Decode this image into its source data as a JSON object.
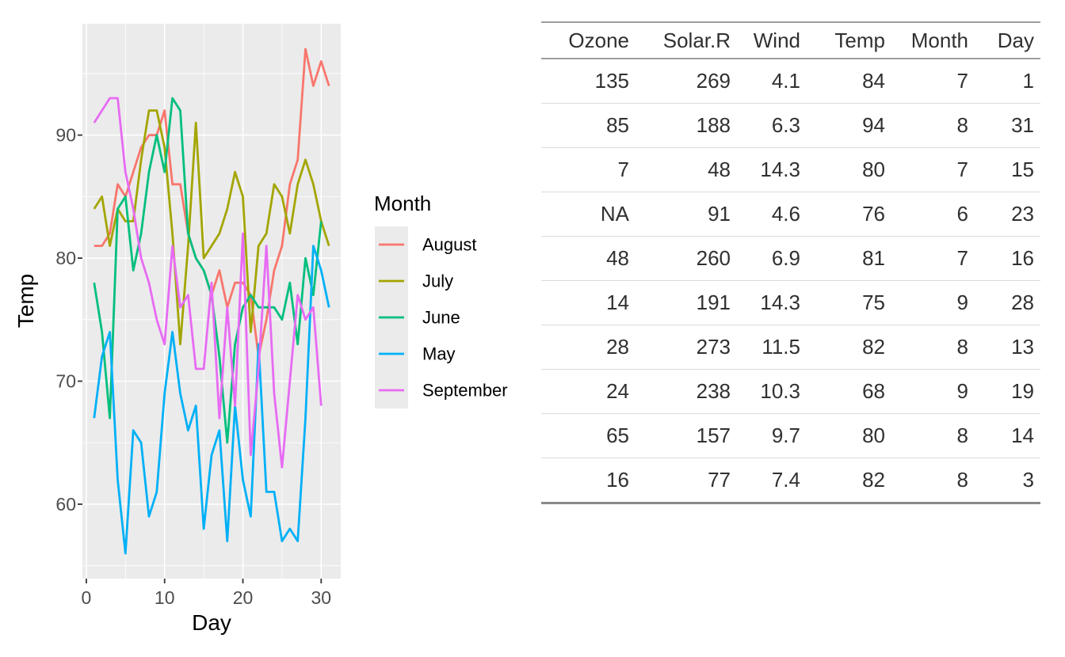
{
  "chart_data": {
    "type": "line",
    "title": "",
    "xlabel": "Day",
    "ylabel": "Temp",
    "x_ticks": [
      0,
      10,
      20,
      30
    ],
    "y_ticks": [
      60,
      70,
      80,
      90
    ],
    "x_minor_ticks": [
      5,
      15,
      25
    ],
    "y_minor_ticks": [
      55,
      65,
      75,
      85,
      95
    ],
    "xlim": [
      -0.5,
      32.5
    ],
    "ylim": [
      53.95,
      99.05
    ],
    "grid": true,
    "panel_background_color": "#EBEBEB",
    "gridline_color": "#FFFFFF",
    "tick_label_color": "#4D4D4D",
    "axis_title_color": "#000000",
    "legend": {
      "title": "Month",
      "position": "right",
      "key_fill": "#EBEBEB"
    },
    "series": [
      {
        "name": "August",
        "color": "#F8766D",
        "x": [
          1,
          2,
          3,
          4,
          5,
          6,
          7,
          8,
          9,
          10,
          11,
          12,
          13,
          14,
          15,
          16,
          17,
          18,
          19,
          20,
          21,
          22,
          23,
          24,
          25,
          26,
          27,
          28,
          29,
          30,
          31
        ],
        "values": [
          81,
          81,
          82,
          86,
          85,
          87,
          89,
          90,
          90,
          92,
          86,
          86,
          82,
          80,
          79,
          77,
          79,
          76,
          78,
          78,
          77,
          72,
          75,
          79,
          81,
          86,
          88,
          97,
          94,
          96,
          94
        ]
      },
      {
        "name": "July",
        "color": "#A3A500",
        "x": [
          1,
          2,
          3,
          4,
          5,
          6,
          7,
          8,
          9,
          10,
          11,
          12,
          13,
          14,
          15,
          16,
          17,
          18,
          19,
          20,
          21,
          22,
          23,
          24,
          25,
          26,
          27,
          28,
          29,
          30,
          31
        ],
        "values": [
          84,
          85,
          81,
          84,
          83,
          83,
          88,
          92,
          92,
          89,
          82,
          73,
          81,
          91,
          80,
          81,
          82,
          84,
          87,
          85,
          74,
          81,
          82,
          86,
          85,
          82,
          86,
          88,
          86,
          83,
          81
        ]
      },
      {
        "name": "June",
        "color": "#00BF7D",
        "x": [
          1,
          2,
          3,
          4,
          5,
          6,
          7,
          8,
          9,
          10,
          11,
          12,
          13,
          14,
          15,
          16,
          17,
          18,
          19,
          20,
          21,
          22,
          23,
          24,
          25,
          26,
          27,
          28,
          29,
          30
        ],
        "values": [
          78,
          74,
          67,
          84,
          85,
          79,
          82,
          87,
          90,
          87,
          93,
          92,
          82,
          80,
          79,
          77,
          72,
          65,
          73,
          76,
          77,
          76,
          76,
          76,
          75,
          78,
          73,
          80,
          77,
          83
        ]
      },
      {
        "name": "May",
        "color": "#00B0F6",
        "x": [
          1,
          2,
          3,
          4,
          5,
          6,
          7,
          8,
          9,
          10,
          11,
          12,
          13,
          14,
          15,
          16,
          17,
          18,
          19,
          20,
          21,
          22,
          23,
          24,
          25,
          26,
          27,
          28,
          29,
          30,
          31
        ],
        "values": [
          67,
          72,
          74,
          62,
          56,
          66,
          65,
          59,
          61,
          69,
          74,
          69,
          66,
          68,
          58,
          64,
          66,
          57,
          68,
          62,
          59,
          73,
          61,
          61,
          57,
          58,
          57,
          67,
          81,
          79,
          76
        ]
      },
      {
        "name": "September",
        "color": "#E76BF3",
        "x": [
          1,
          2,
          3,
          4,
          5,
          6,
          7,
          8,
          9,
          10,
          11,
          12,
          13,
          14,
          15,
          16,
          17,
          18,
          19,
          20,
          21,
          22,
          23,
          24,
          25,
          26,
          27,
          28,
          29,
          30
        ],
        "values": [
          91,
          92,
          93,
          93,
          87,
          84,
          80,
          78,
          75,
          73,
          81,
          76,
          77,
          71,
          71,
          78,
          67,
          76,
          68,
          82,
          64,
          71,
          81,
          69,
          63,
          70,
          77,
          75,
          76,
          68
        ]
      }
    ]
  },
  "table": {
    "columns": [
      "Ozone",
      "Solar.R",
      "Wind",
      "Temp",
      "Month",
      "Day"
    ],
    "rows": [
      [
        "135",
        "269",
        "4.1",
        "84",
        "7",
        "1"
      ],
      [
        "85",
        "188",
        "6.3",
        "94",
        "8",
        "31"
      ],
      [
        "7",
        "48",
        "14.3",
        "80",
        "7",
        "15"
      ],
      [
        "NA",
        "91",
        "4.6",
        "76",
        "6",
        "23"
      ],
      [
        "48",
        "260",
        "6.9",
        "81",
        "7",
        "16"
      ],
      [
        "14",
        "191",
        "14.3",
        "75",
        "9",
        "28"
      ],
      [
        "28",
        "273",
        "11.5",
        "82",
        "8",
        "13"
      ],
      [
        "24",
        "238",
        "10.3",
        "68",
        "9",
        "19"
      ],
      [
        "65",
        "157",
        "9.7",
        "80",
        "8",
        "14"
      ],
      [
        "16",
        "77",
        "7.4",
        "82",
        "8",
        "3"
      ]
    ]
  }
}
